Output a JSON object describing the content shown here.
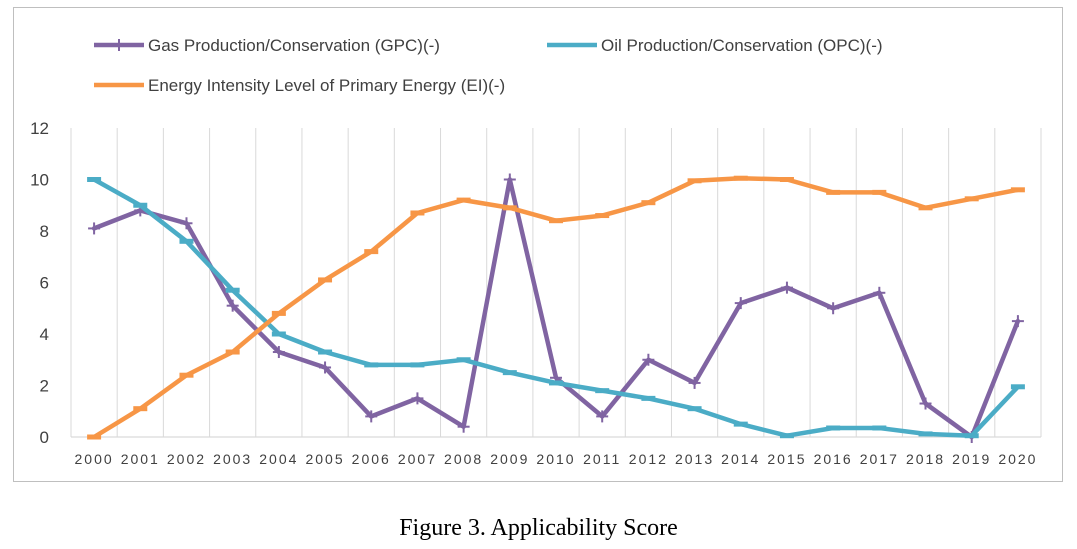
{
  "caption": "Figure 3. Applicability Score",
  "chart_data": {
    "type": "line",
    "title": "",
    "xlabel": "",
    "ylabel": "",
    "ylim": [
      0,
      12
    ],
    "yticks": [
      0,
      2,
      4,
      6,
      8,
      10,
      12
    ],
    "grid": "vertical",
    "legend_position": "top",
    "x": [
      "2000",
      "2001",
      "2002",
      "2003",
      "2004",
      "2005",
      "2006",
      "2007",
      "2008",
      "2009",
      "2010",
      "2011",
      "2012",
      "2013",
      "2014",
      "2015",
      "2016",
      "2017",
      "2018",
      "2019",
      "2020"
    ],
    "series": [
      {
        "name": "Gas Production/Conservation (GPC)(-)",
        "color": "#8064a2",
        "marker": "plus",
        "values": [
          8.1,
          8.8,
          8.3,
          5.1,
          3.3,
          2.7,
          0.8,
          1.5,
          0.4,
          10.0,
          2.3,
          0.8,
          3.0,
          2.1,
          5.2,
          5.8,
          5.0,
          5.6,
          1.3,
          0.0,
          4.5
        ]
      },
      {
        "name": "Oil Production/Conservation (OPC)(-)",
        "color": "#4bacc6",
        "marker": "dash",
        "values": [
          10.0,
          9.0,
          7.6,
          5.7,
          4.0,
          3.3,
          2.8,
          2.8,
          3.0,
          2.5,
          2.1,
          1.8,
          1.5,
          1.1,
          0.5,
          0.05,
          0.35,
          0.35,
          0.12,
          0.05,
          1.95
        ]
      },
      {
        "name": "Energy Intensity Level of Primary Energy (EI)(-)",
        "color": "#f79646",
        "marker": "dash",
        "values": [
          0.0,
          1.1,
          2.4,
          3.3,
          4.8,
          6.1,
          7.2,
          8.7,
          9.2,
          8.9,
          8.4,
          8.6,
          9.1,
          9.95,
          10.05,
          10.0,
          9.5,
          9.5,
          8.9,
          9.25,
          9.6
        ]
      }
    ]
  }
}
